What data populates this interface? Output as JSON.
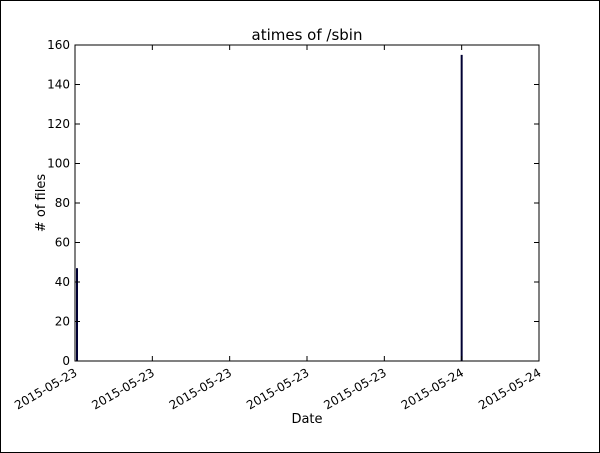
{
  "chart_data": {
    "type": "bar",
    "title": "atimes of /sbin",
    "xlabel": "Date",
    "ylabel": "# of files",
    "ylim": [
      0,
      160
    ],
    "yticks": [
      0,
      20,
      40,
      60,
      80,
      100,
      120,
      140,
      160
    ],
    "xtick_labels": [
      "2015-05-23",
      "2015-05-23",
      "2015-05-23",
      "2015-05-23",
      "2015-05-23",
      "2015-05-24",
      "2015-05-24"
    ],
    "bars": [
      {
        "x": "2015-05-23",
        "value": 47
      },
      {
        "x": "2015-05-24",
        "value": 155
      }
    ],
    "bar_color": "#000033",
    "grid": false,
    "legend": "none"
  }
}
